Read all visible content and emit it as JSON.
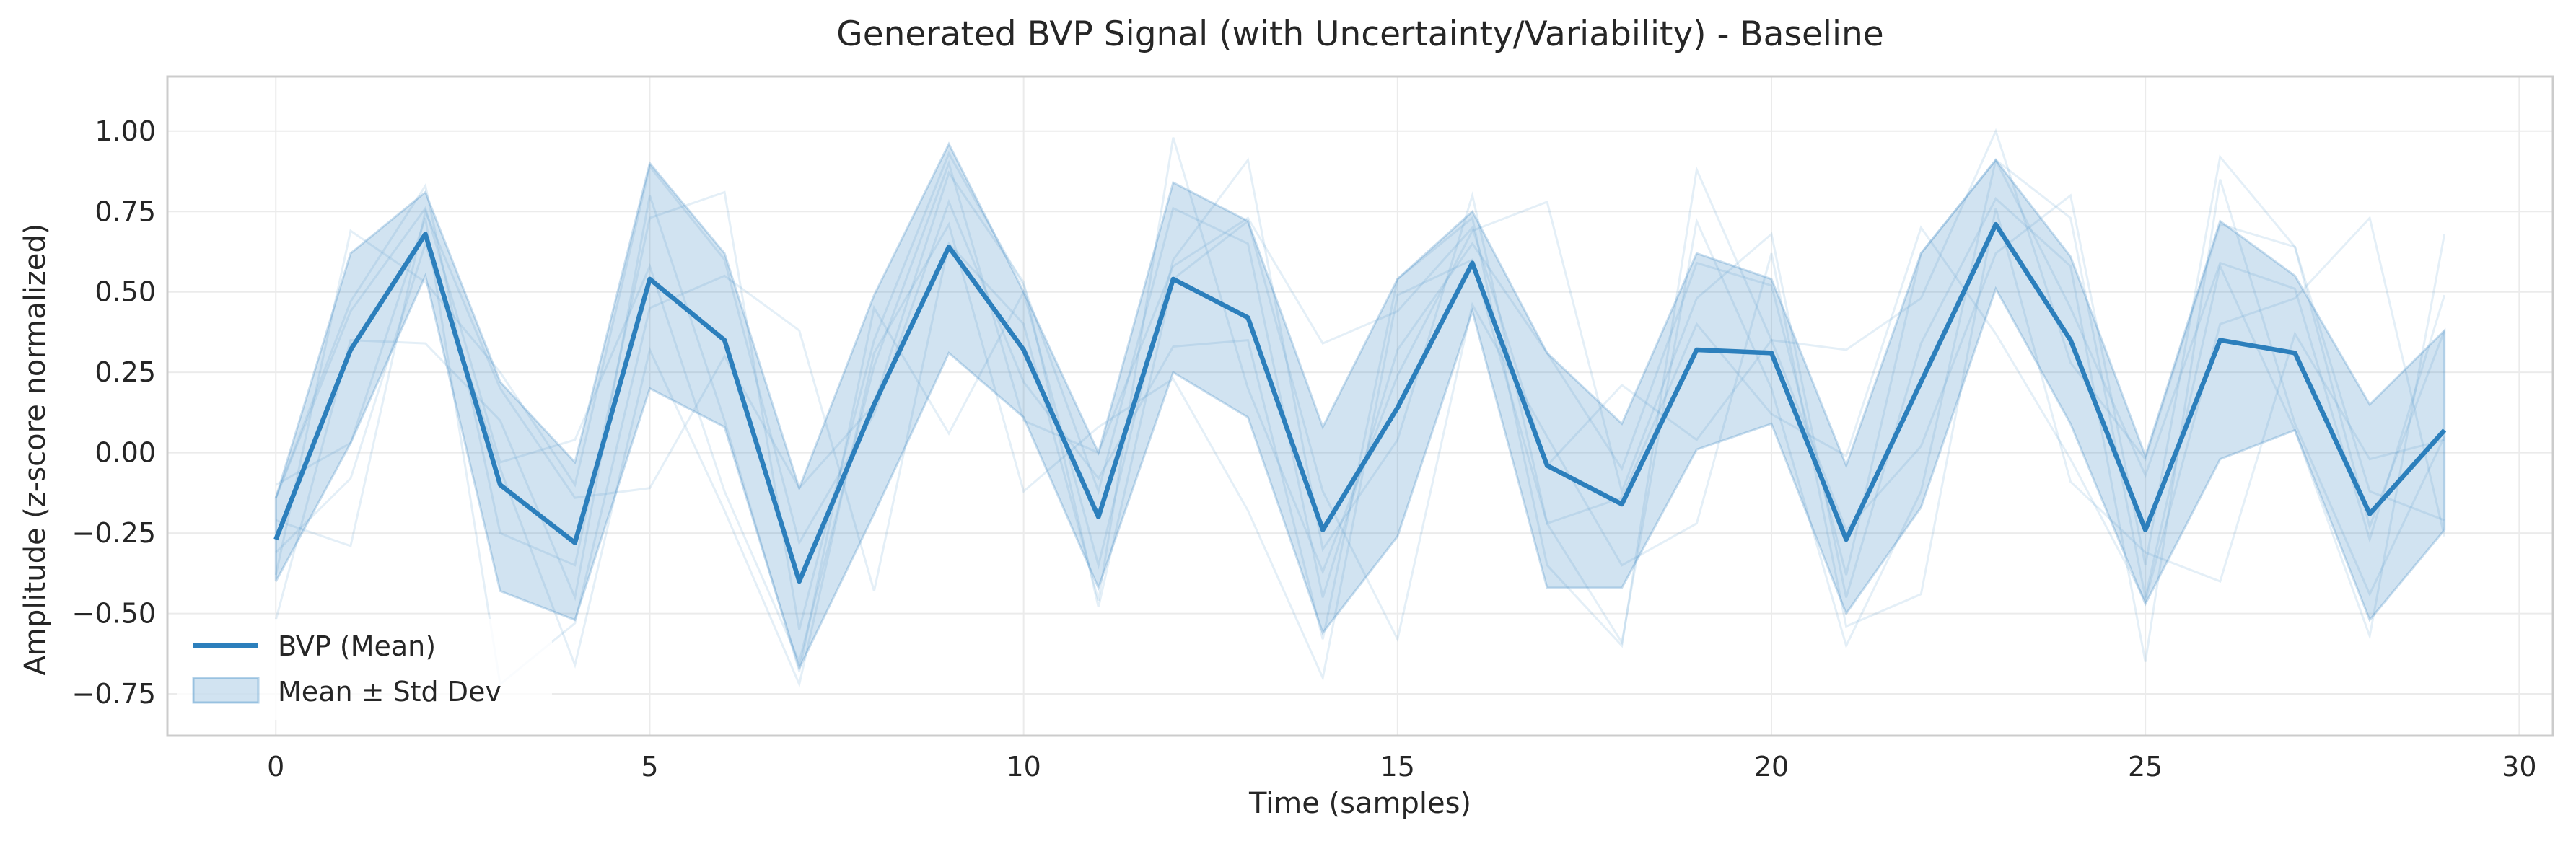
{
  "chart_data": {
    "type": "line",
    "title": "Generated BVP Signal (with Uncertainty/Variability) - Baseline",
    "xlabel": "Time (samples)",
    "ylabel": "Amplitude (z-score normalized)",
    "xlim": [
      -1.45,
      30.45
    ],
    "ylim": [
      -0.88,
      1.17
    ],
    "xticks": [
      0,
      5,
      10,
      15,
      20,
      25,
      30
    ],
    "xtick_labels": [
      "0",
      "5",
      "10",
      "15",
      "20",
      "25",
      "30"
    ],
    "yticks": [
      -0.75,
      -0.5,
      -0.25,
      0.0,
      0.25,
      0.5,
      0.75,
      1.0
    ],
    "ytick_labels": [
      "−0.75",
      "−0.50",
      "−0.25",
      "0.00",
      "0.25",
      "0.50",
      "0.75",
      "1.00"
    ],
    "grid": true,
    "legend_position": "lower-left",
    "colors": {
      "mean": "#2c7fbc",
      "band": "#2f80c0",
      "samples": "#2f80c0"
    },
    "x": [
      0,
      1,
      2,
      3,
      4,
      5,
      6,
      7,
      8,
      9,
      10,
      11,
      12,
      13,
      14,
      15,
      16,
      17,
      18,
      19,
      20,
      21,
      22,
      23,
      24,
      25,
      26,
      27,
      28,
      29
    ],
    "series": [
      {
        "name": "BVP (Mean)",
        "values": [
          -0.27,
          0.32,
          0.68,
          -0.1,
          -0.28,
          0.54,
          0.35,
          -0.4,
          0.15,
          0.64,
          0.32,
          -0.2,
          0.54,
          0.42,
          -0.24,
          0.14,
          0.59,
          -0.04,
          -0.16,
          0.32,
          0.31,
          -0.27,
          0.22,
          0.71,
          0.35,
          -0.24,
          0.35,
          0.31,
          -0.19,
          0.07
        ]
      }
    ],
    "band": {
      "name": "Mean ± Std Dev",
      "upper": [
        -0.14,
        0.62,
        0.81,
        0.22,
        -0.03,
        0.9,
        0.62,
        -0.11,
        0.49,
        0.96,
        0.5,
        0.0,
        0.84,
        0.72,
        0.08,
        0.54,
        0.75,
        0.31,
        0.09,
        0.62,
        0.54,
        -0.04,
        0.62,
        0.91,
        0.61,
        -0.01,
        0.72,
        0.55,
        0.15,
        0.38
      ],
      "lower": [
        -0.4,
        0.03,
        0.55,
        -0.43,
        -0.52,
        0.2,
        0.08,
        -0.67,
        -0.19,
        0.31,
        0.11,
        -0.42,
        0.25,
        0.11,
        -0.56,
        -0.26,
        0.44,
        -0.42,
        -0.42,
        0.01,
        0.09,
        -0.5,
        -0.17,
        0.51,
        0.09,
        -0.47,
        -0.02,
        0.07,
        -0.52,
        -0.24
      ]
    },
    "individual_samples": [
      [
        -0.14,
        0.47,
        0.83,
        -0.25,
        -0.35,
        0.73,
        0.81,
        -0.55,
        0.35,
        0.93,
        0.52,
        -0.12,
        0.76,
        0.65,
        -0.45,
        0.32,
        0.65,
        0.31,
        -0.05,
        0.59,
        0.52,
        -0.38,
        0.62,
        0.91,
        0.45,
        -0.07,
        0.59,
        0.51,
        -0.27,
        0.49
      ],
      [
        -0.38,
        0.69,
        0.53,
        0.25,
        -0.1,
        0.89,
        0.6,
        -0.28,
        0.12,
        0.78,
        0.22,
        -0.08,
        0.33,
        0.35,
        -0.58,
        0.54,
        0.73,
        -0.35,
        -0.6,
        0.88,
        0.35,
        -0.24,
        0.02,
        0.62,
        0.8,
        -0.35,
        0.92,
        0.64,
        -0.23,
        0.38
      ],
      [
        -0.1,
        0.03,
        0.73,
        -0.72,
        -0.53,
        0.45,
        0.55,
        0.38,
        -0.43,
        0.65,
        0.4,
        -0.46,
        0.98,
        0.2,
        -0.37,
        0.24,
        0.69,
        0.78,
        -0.12,
        0.48,
        0.68,
        -0.45,
        0.34,
        0.79,
        0.58,
        -0.65,
        0.85,
        0.09,
        -0.44,
        0.05
      ],
      [
        -0.52,
        0.35,
        0.34,
        0.1,
        -0.45,
        0.8,
        0.1,
        -0.68,
        0.45,
        0.06,
        0.5,
        -0.35,
        0.6,
        0.91,
        -0.3,
        0.04,
        0.8,
        -0.22,
        -0.14,
        0.4,
        0.12,
        -0.01,
        0.7,
        0.37,
        -0.02,
        -0.46,
        0.4,
        0.48,
        0.73,
        -0.26
      ],
      [
        -0.31,
        -0.08,
        0.65,
        -0.05,
        -0.66,
        0.32,
        -0.18,
        -0.72,
        0.31,
        0.71,
        -0.12,
        0.08,
        0.23,
        -0.18,
        -0.7,
        0.49,
        0.6,
        -0.22,
        -0.59,
        0.72,
        0.2,
        -0.6,
        -0.12,
        0.91,
        0.73,
        -0.45,
        0.58,
        0.07,
        -0.57,
        0.68
      ],
      [
        -0.14,
        0.44,
        0.76,
        -0.03,
        0.04,
        0.58,
        -0.12,
        -0.65,
        0.27,
        0.9,
        0.1,
        0.0,
        0.58,
        0.73,
        0.34,
        0.44,
        0.7,
        -0.04,
        0.21,
        0.04,
        0.35,
        0.32,
        0.48,
        1.0,
        0.28,
        -0.02,
        0.71,
        0.64,
        -0.12,
        -0.21
      ],
      [
        -0.21,
        -0.29,
        0.75,
        0.2,
        -0.14,
        -0.11,
        0.3,
        -0.11,
        0.15,
        0.87,
        0.53,
        -0.48,
        0.54,
        0.72,
        -0.12,
        -0.58,
        0.46,
        0.05,
        -0.35,
        -0.22,
        0.62,
        -0.54,
        -0.44,
        0.76,
        -0.09,
        -0.31,
        -0.4,
        0.37,
        -0.02,
        0.04
      ]
    ]
  }
}
